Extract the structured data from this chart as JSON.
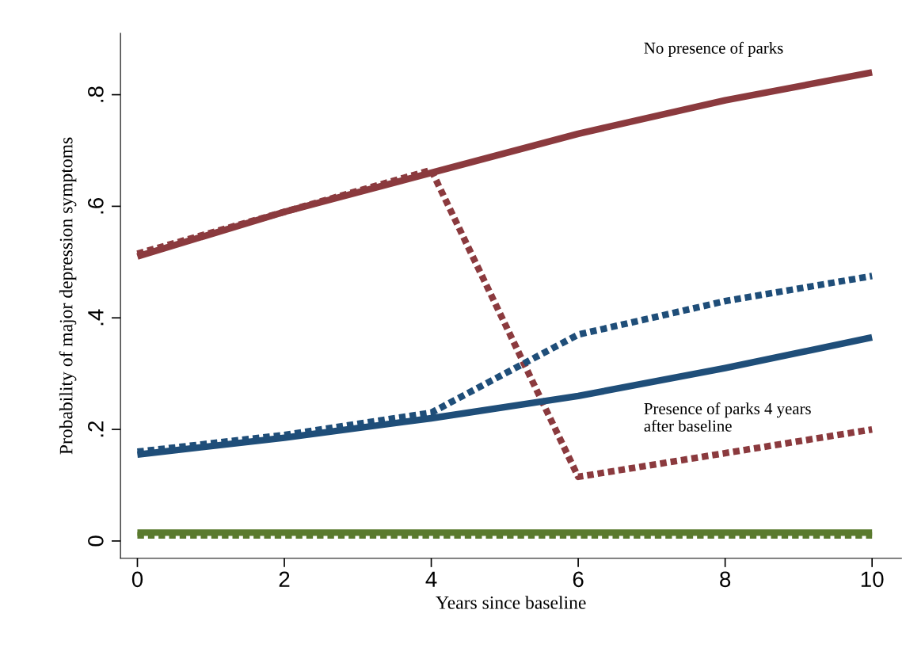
{
  "chart_data": {
    "type": "line",
    "xlabel": "Years since baseline",
    "ylabel": "Probability of major depression symptoms",
    "x": [
      0,
      2,
      4,
      6,
      8,
      10
    ],
    "series": [
      {
        "color": "#8b3a3e",
        "line_style": "solid",
        "values": [
          0.51,
          0.59,
          0.66,
          0.73,
          0.79,
          0.84
        ]
      },
      {
        "color": "#8b3a3e",
        "line_style": "dotted",
        "x": [
          0,
          4,
          6,
          10
        ],
        "values": [
          0.515,
          0.665,
          0.115,
          0.2
        ]
      },
      {
        "color": "#1f4e79",
        "line_style": "solid",
        "values": [
          0.155,
          0.185,
          0.22,
          0.26,
          0.31,
          0.365
        ]
      },
      {
        "color": "#1f4e79",
        "line_style": "dotted",
        "values": [
          0.16,
          0.19,
          0.23,
          0.37,
          0.43,
          0.475
        ]
      },
      {
        "color": "#5a7a2e",
        "line_style": "solid",
        "values": [
          0.015,
          0.015,
          0.015,
          0.015,
          0.015,
          0.015
        ]
      },
      {
        "color": "#5a7a2e",
        "line_style": "dotted",
        "values": [
          0.01,
          0.01,
          0.01,
          0.01,
          0.01,
          0.01
        ]
      }
    ],
    "annotations": [
      "No presence of parks",
      "Presence of parks 4 years\nafter baseline"
    ],
    "xlim": [
      -0.23,
      10.4
    ],
    "ylim": [
      -0.031,
      0.91
    ],
    "xticks": [
      0,
      2,
      4,
      6,
      8,
      10
    ],
    "yticks": [
      {
        "value": 0,
        "label": "0"
      },
      {
        "value": 0.2,
        "label": ".2"
      },
      {
        "value": 0.4,
        "label": ".4"
      },
      {
        "value": 0.6,
        "label": ".6"
      },
      {
        "value": 0.8,
        "label": ".8"
      }
    ],
    "grid": false,
    "legend": false,
    "marker": "none"
  }
}
